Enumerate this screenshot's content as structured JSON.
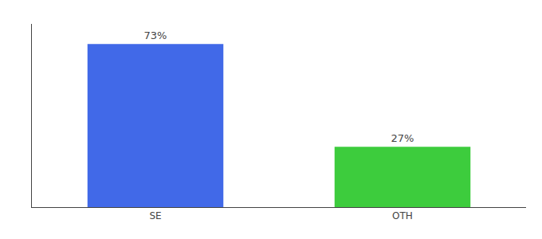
{
  "chart_data": {
    "type": "bar",
    "categories": [
      "SE",
      "OTH"
    ],
    "values": [
      73,
      27
    ],
    "value_labels": [
      "73%",
      "27%"
    ],
    "data_labels": true,
    "colors": [
      "#4169e8",
      "#3dcc3d"
    ],
    "ylim": [
      0,
      82
    ],
    "tick_labels": "x",
    "grid": false
  }
}
